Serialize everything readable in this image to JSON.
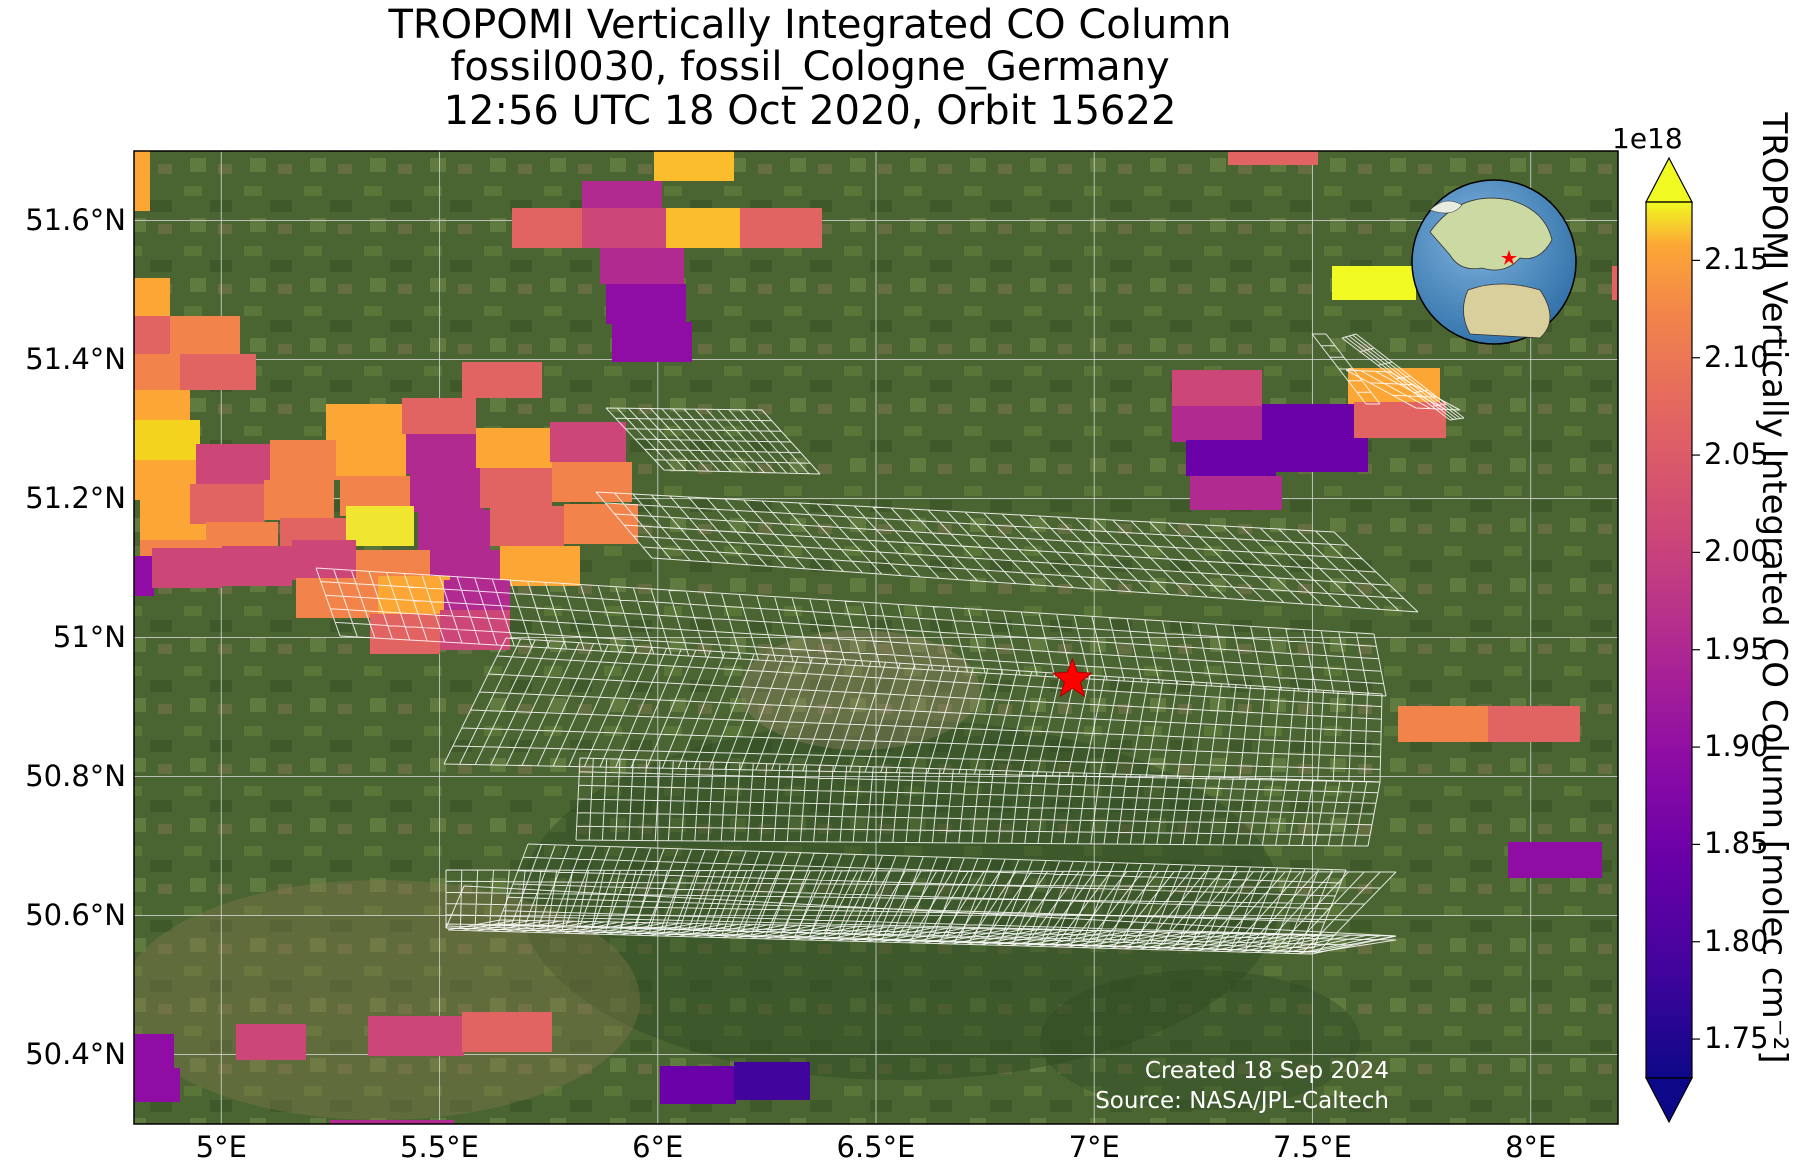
{
  "title": {
    "line1": "TROPOMI Vertically Integrated CO Column",
    "line2": "fossil0030, fossil_Cologne_Germany",
    "line3": "12:56 UTC 18 Oct 2020, Orbit 15622"
  },
  "map": {
    "projection": "PlateCarree",
    "extent": {
      "lon": [
        4.8,
        8.2
      ],
      "lat": [
        50.3,
        51.7
      ]
    },
    "background": "satellite imagery (vegetation green)",
    "gridlines": true,
    "lon_ticks": [
      5.0,
      5.5,
      6.0,
      6.5,
      7.0,
      7.5,
      8.0
    ],
    "lon_tick_labels": [
      "5°E",
      "5.5°E",
      "6°E",
      "6.5°E",
      "7°E",
      "7.5°E",
      "8°E"
    ],
    "lat_ticks": [
      51.6,
      51.4,
      51.2,
      51.0,
      50.8,
      50.6,
      50.4
    ],
    "lat_tick_labels": [
      "51.6°N",
      "51.4°N",
      "51.2°N",
      "51°N",
      "50.8°N",
      "50.6°N",
      "50.4°N"
    ],
    "target": {
      "lon": 6.95,
      "lat": 50.94,
      "marker": "star",
      "color": "#ff0000"
    },
    "inset_globe": {
      "land_color": "#cbd9a3",
      "ocean_color": "#4e8fc6",
      "marker_color": "#ff0000"
    }
  },
  "colorbar": {
    "label": "TROPOMI Vertically Integrated CO Column [molec cm⁻²]",
    "exponent": "1e18",
    "colormap": "plasma",
    "range": [
      1.73,
      2.18
    ],
    "extend": "both",
    "ticks": [
      1.75,
      1.8,
      1.85,
      1.9,
      1.95,
      2.0,
      2.05,
      2.1,
      2.15
    ],
    "tick_labels": [
      "1.75",
      "1.80",
      "1.85",
      "1.90",
      "1.95",
      "2.00",
      "2.05",
      "2.10",
      "2.15"
    ]
  },
  "credit": {
    "created": "Created 18 Sep 2024",
    "source": "Source: NASA/JPL-Caltech"
  }
}
